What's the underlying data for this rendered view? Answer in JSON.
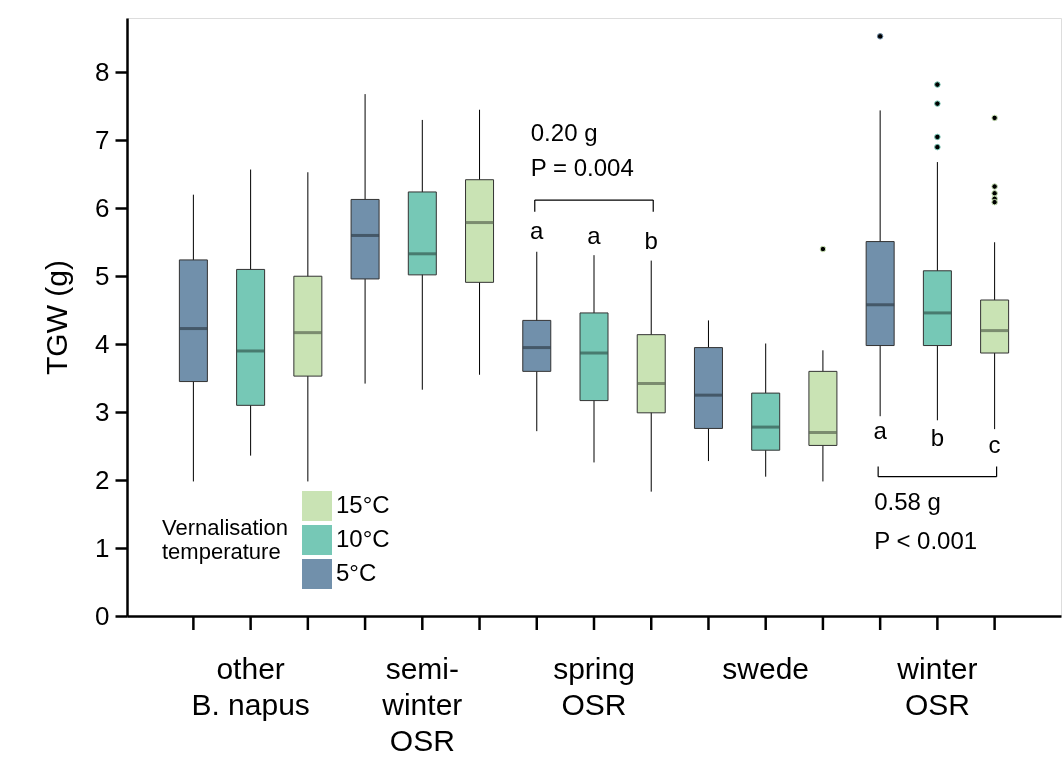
{
  "chart_data": {
    "type": "box",
    "ylabel": "TGW (g)",
    "legend_title": "Vernalisation temperature",
    "categories": [
      "other\nB. napus",
      "semi-\nwinter\nOSR",
      "spring\nOSR",
      "swede",
      "winter\nOSR"
    ],
    "ylim": [
      0,
      8.8
    ],
    "yticks": [
      0,
      1,
      2,
      3,
      4,
      5,
      6,
      7,
      8
    ],
    "grid": false,
    "legend": "bottom left",
    "series": [
      {
        "name": "5°C",
        "color": "#7190ab",
        "boxes": [
          {
            "low": 1.98,
            "q1": 3.45,
            "median": 4.23,
            "q3": 5.24,
            "high": 6.2
          },
          {
            "low": 3.42,
            "q1": 4.96,
            "median": 5.6,
            "q3": 6.13,
            "high": 7.68
          },
          {
            "low": 2.72,
            "q1": 3.6,
            "median": 3.95,
            "q3": 4.35,
            "high": 5.36
          },
          {
            "low": 2.28,
            "q1": 2.76,
            "median": 3.25,
            "q3": 3.95,
            "high": 4.35
          },
          {
            "low": 2.94,
            "q1": 3.98,
            "median": 4.58,
            "q3": 5.51,
            "high": 7.44,
            "outliers": [
              8.53
            ]
          }
        ]
      },
      {
        "name": "10°C",
        "color": "#76c8b6",
        "boxes": [
          {
            "low": 2.36,
            "q1": 3.1,
            "median": 3.9,
            "q3": 5.1,
            "high": 6.57
          },
          {
            "low": 3.33,
            "q1": 5.02,
            "median": 5.33,
            "q3": 6.24,
            "high": 7.3
          },
          {
            "low": 2.26,
            "q1": 3.17,
            "median": 3.87,
            "q3": 4.46,
            "high": 5.31
          },
          {
            "low": 2.05,
            "q1": 2.44,
            "median": 2.78,
            "q3": 3.28,
            "high": 4.01
          },
          {
            "low": 2.88,
            "q1": 3.98,
            "median": 4.46,
            "q3": 5.08,
            "high": 6.68,
            "outliers": [
              7.82,
              7.54,
              7.05,
              6.9
            ]
          }
        ]
      },
      {
        "name": "15°C",
        "color": "#c9e3b4",
        "boxes": [
          {
            "low": 1.98,
            "q1": 3.53,
            "median": 4.17,
            "q3": 5.0,
            "high": 6.53
          },
          {
            "low": 3.55,
            "q1": 4.91,
            "median": 5.79,
            "q3": 6.42,
            "high": 7.45
          },
          {
            "low": 1.83,
            "q1": 2.99,
            "median": 3.42,
            "q3": 4.14,
            "high": 5.23
          },
          {
            "low": 1.98,
            "q1": 2.51,
            "median": 2.7,
            "q3": 3.6,
            "high": 3.91,
            "outliers": [
              5.4
            ]
          },
          {
            "low": 2.75,
            "q1": 3.87,
            "median": 4.2,
            "q3": 4.65,
            "high": 5.5,
            "outliers": [
              7.33,
              6.32,
              6.22,
              6.14,
              6.09
            ]
          }
        ]
      }
    ],
    "annotations": [
      "a",
      "a",
      "b",
      "0.20 g",
      "P = 0.004",
      "a",
      "b",
      "c",
      "0.58 g",
      "P < 0.001"
    ]
  }
}
